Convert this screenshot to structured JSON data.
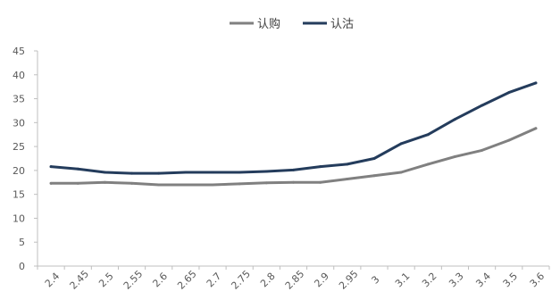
{
  "chart_data": {
    "type": "line",
    "x": [
      "2.4",
      "2.45",
      "2.5",
      "2.55",
      "2.6",
      "2.65",
      "2.7",
      "2.75",
      "2.8",
      "2.85",
      "2.9",
      "2.95",
      "3",
      "3.1",
      "3.2",
      "3.3",
      "3.4",
      "3.5",
      "3.6"
    ],
    "series": [
      {
        "name": "认购",
        "color": "#808080",
        "values": [
          17.3,
          17.3,
          17.5,
          17.3,
          17.0,
          17.0,
          17.0,
          17.2,
          17.4,
          17.5,
          17.5,
          18.2,
          18.9,
          19.6,
          21.3,
          22.9,
          24.2,
          26.3,
          28.8
        ]
      },
      {
        "name": "认沽",
        "color": "#243C5C",
        "values": [
          20.8,
          20.3,
          19.6,
          19.4,
          19.4,
          19.6,
          19.6,
          19.6,
          19.8,
          20.1,
          20.8,
          21.3,
          22.5,
          25.6,
          27.5,
          30.7,
          33.6,
          36.3,
          38.3
        ]
      }
    ],
    "yticks": [
      "0",
      "5",
      "10",
      "15",
      "20",
      "25",
      "30",
      "35",
      "40",
      "45"
    ],
    "ylim": [
      0,
      45
    ],
    "grid": false,
    "legend": "top-center"
  }
}
